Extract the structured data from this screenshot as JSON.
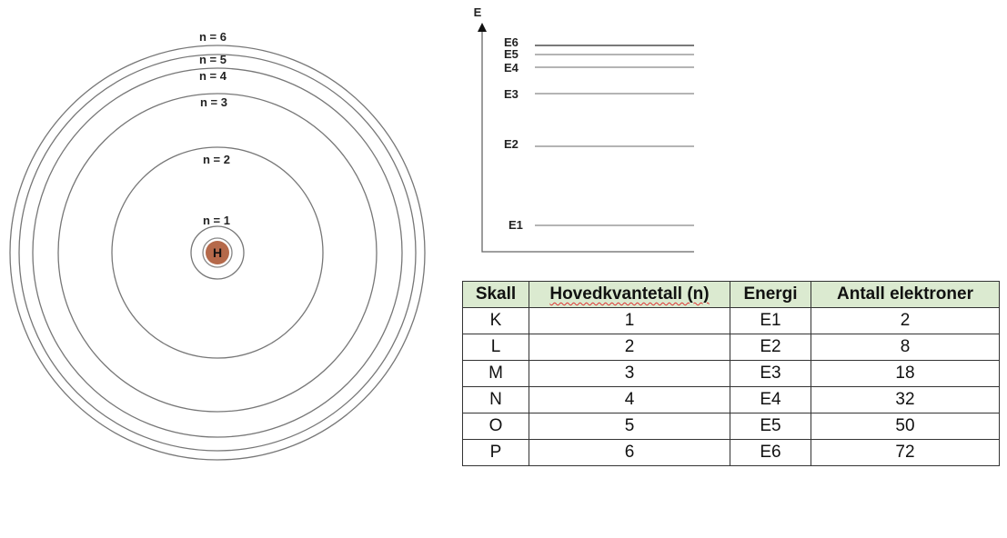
{
  "atom": {
    "nucleus_label": "H",
    "nucleus_color": "#b5694a",
    "orbits": [
      "n = 1",
      "n = 2",
      "n = 3",
      "n = 4",
      "n = 5",
      "n = 6"
    ]
  },
  "energy_diagram": {
    "axis_label": "E",
    "levels": [
      "E1",
      "E2",
      "E3",
      "E4",
      "E5",
      "E6"
    ]
  },
  "table": {
    "header_color": "#dbead0",
    "headers": [
      "Skall",
      "Hovedkvantetall (n)",
      "Energi",
      "Antall elektroner"
    ],
    "rows": [
      [
        "K",
        "1",
        "E1",
        "2"
      ],
      [
        "L",
        "2",
        "E2",
        "8"
      ],
      [
        "M",
        "3",
        "E3",
        "18"
      ],
      [
        "N",
        "4",
        "E4",
        "32"
      ],
      [
        "O",
        "5",
        "E5",
        "50"
      ],
      [
        "P",
        "6",
        "E6",
        "72"
      ]
    ]
  }
}
